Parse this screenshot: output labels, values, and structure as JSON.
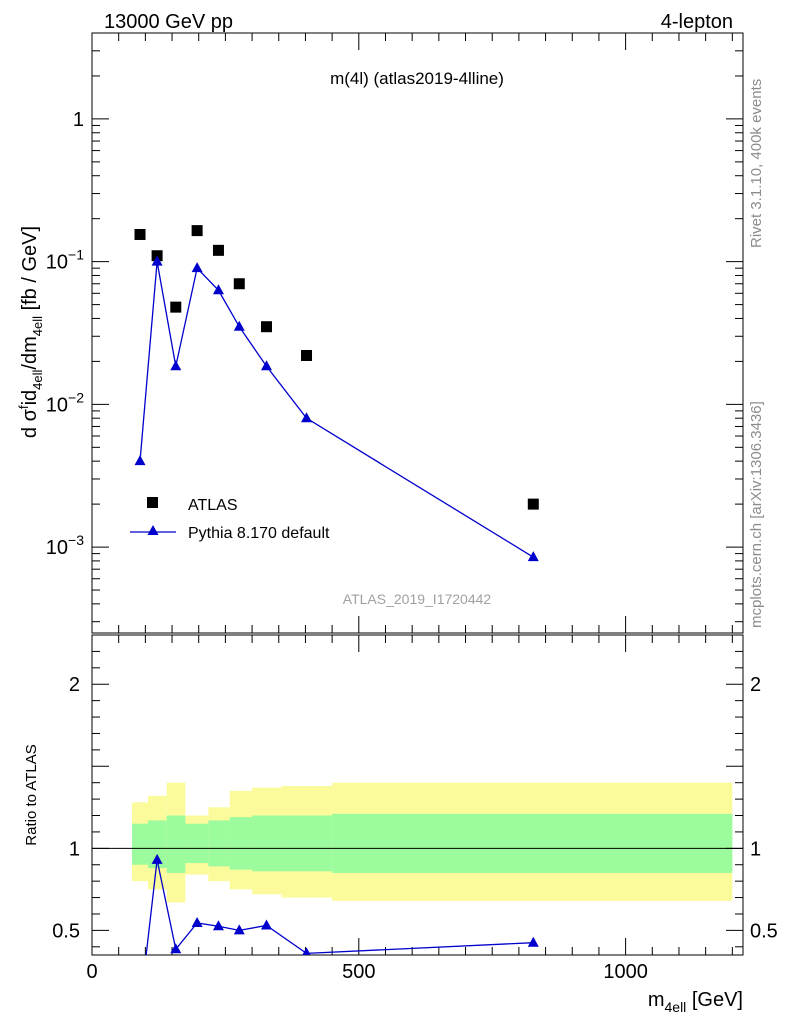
{
  "header": {
    "left": "13000 GeV pp",
    "right": "4-lepton"
  },
  "side_text": {
    "top": "Rivet 3.1.10,  400k events",
    "bottom": "mcplots.cern.ch [arXiv:1306.3436]"
  },
  "chart_data": [
    {
      "type": "scatter",
      "panel": "main",
      "title": "m(4l) (atlas2019-4lline)",
      "watermark": "ATLAS_2019_I1720442",
      "ylabel": "d σ^{f}id_{4ell}/dm_{4ell} [fb / GeV]",
      "ylabel_parts": {
        "a": "d σ",
        "b": "f",
        "c": "id",
        "d": "4ell",
        "e": "/dm",
        "f": "4ell",
        "g": " [fb / GeV]"
      },
      "yscale": "log",
      "ylim": [
        0.00025,
        4
      ],
      "xlim": [
        0,
        1220
      ],
      "ytick_labels": [
        {
          "value": 1,
          "base": "1",
          "exp": ""
        },
        {
          "value": 0.1,
          "base": "10",
          "exp": "−1"
        },
        {
          "value": 0.01,
          "base": "10",
          "exp": "−2"
        },
        {
          "value": 0.001,
          "base": "10",
          "exp": "−3"
        }
      ],
      "legend": {
        "position": "lower-left",
        "entries": [
          "ATLAS",
          "Pythia 8.170 default"
        ]
      },
      "series": [
        {
          "name": "ATLAS",
          "marker": "square",
          "color": "#000000",
          "x": [
            90,
            122,
            157,
            197,
            237,
            276,
            327,
            402,
            827
          ],
          "y": [
            0.155,
            0.11,
            0.048,
            0.165,
            0.12,
            0.07,
            0.035,
            0.022,
            0.002
          ]
        },
        {
          "name": "Pythia 8.170 default",
          "marker": "triangle",
          "color": "#0000cc",
          "line": true,
          "x": [
            90,
            122,
            157,
            197,
            237,
            276,
            327,
            402,
            827
          ],
          "y": [
            0.004,
            0.1,
            0.0185,
            0.09,
            0.063,
            0.035,
            0.0185,
            0.008,
            0.00085
          ]
        }
      ]
    },
    {
      "type": "line",
      "panel": "ratio",
      "ylabel": "Ratio to ATLAS",
      "ylim": [
        0.35,
        2.3
      ],
      "xlim": [
        0,
        1220
      ],
      "ytick_labels": [
        "0.5",
        "1",
        "2"
      ],
      "ytick_values": [
        0.5,
        1,
        2
      ],
      "xlabel": "m_{4ell} [GeV]",
      "xlabel_parts": {
        "a": "m",
        "b": "4ell",
        "c": " [GeV]"
      },
      "xtick_labels": [
        "0",
        "500",
        "1000"
      ],
      "xtick_values": [
        0,
        500,
        1000
      ],
      "reference_line": 1,
      "bands": [
        {
          "x": [
            75,
            105
          ],
          "stat": [
            0.9,
            1.15
          ],
          "total": [
            0.8,
            1.28
          ]
        },
        {
          "x": [
            105,
            140
          ],
          "stat": [
            0.88,
            1.17
          ],
          "total": [
            0.75,
            1.32
          ]
        },
        {
          "x": [
            140,
            175
          ],
          "stat": [
            0.85,
            1.2
          ],
          "total": [
            0.67,
            1.4
          ]
        },
        {
          "x": [
            175,
            218
          ],
          "stat": [
            0.91,
            1.15
          ],
          "total": [
            0.84,
            1.2
          ]
        },
        {
          "x": [
            218,
            258
          ],
          "stat": [
            0.89,
            1.17
          ],
          "total": [
            0.8,
            1.25
          ]
        },
        {
          "x": [
            258,
            300
          ],
          "stat": [
            0.87,
            1.19
          ],
          "total": [
            0.75,
            1.35
          ]
        },
        {
          "x": [
            300,
            355
          ],
          "stat": [
            0.86,
            1.2
          ],
          "total": [
            0.72,
            1.37
          ]
        },
        {
          "x": [
            355,
            450
          ],
          "stat": [
            0.86,
            1.2
          ],
          "total": [
            0.7,
            1.38
          ]
        },
        {
          "x": [
            450,
            1200
          ],
          "stat": [
            0.85,
            1.21
          ],
          "total": [
            0.68,
            1.4
          ]
        }
      ],
      "band_colors": {
        "stat": "#9cfb9c",
        "total": "#fbfb9c"
      },
      "series": [
        {
          "name": "Pythia 8.170 default",
          "color": "#0000cc",
          "marker": "triangle",
          "x": [
            90,
            122,
            157,
            197,
            237,
            276,
            327,
            402,
            827
          ],
          "y": [
            0.026,
            0.93,
            0.385,
            0.545,
            0.525,
            0.5,
            0.53,
            0.36,
            0.425
          ]
        }
      ]
    }
  ]
}
